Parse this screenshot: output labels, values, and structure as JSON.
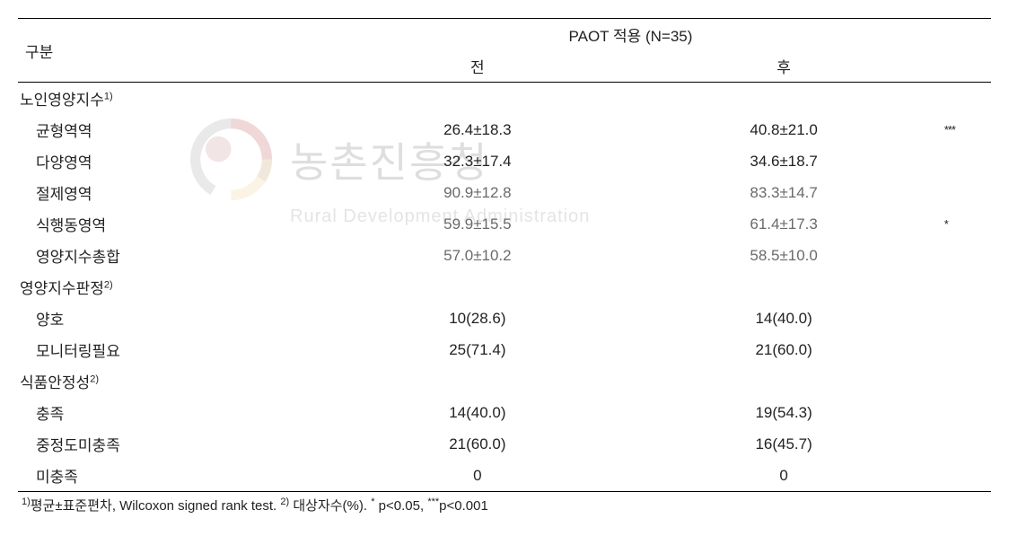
{
  "watermark": {
    "text_kr": "농촌진흥청",
    "text_en": "Rural Development Administration"
  },
  "header": {
    "category": "구분",
    "group": "PAOT 적용 (N=35)",
    "before": "전",
    "after": "후"
  },
  "sections": [
    {
      "label": "노인영양지수",
      "sup": "1)",
      "rows": [
        {
          "label": "균형역역",
          "before": "26.4±18.3",
          "after": "40.8±21.0",
          "sig": "***",
          "gray": false
        },
        {
          "label": "다양영역",
          "before": "32.3±17.4",
          "after": "34.6±18.7",
          "sig": "",
          "gray": false
        },
        {
          "label": "절제영역",
          "before": "90.9±12.8",
          "after": "83.3±14.7",
          "sig": "",
          "gray": true
        },
        {
          "label": "식행동영역",
          "before": "59.9±15.5",
          "after": "61.4±17.3",
          "sig": "*",
          "gray": true
        },
        {
          "label": "영양지수총합",
          "before": "57.0±10.2",
          "after": "58.5±10.0",
          "sig": "",
          "gray": true
        }
      ]
    },
    {
      "label": "영양지수판정",
      "sup": "2)",
      "rows": [
        {
          "label": "양호",
          "before": "10(28.6)",
          "after": "14(40.0)",
          "sig": "",
          "gray": false
        },
        {
          "label": "모니터링필요",
          "before": "25(71.4)",
          "after": "21(60.0)",
          "sig": "",
          "gray": false
        }
      ]
    },
    {
      "label": "식품안정성",
      "sup": "2)",
      "rows": [
        {
          "label": "충족",
          "before": "14(40.0)",
          "after": "19(54.3)",
          "sig": "",
          "gray": false
        },
        {
          "label": "중정도미충족",
          "before": "21(60.0)",
          "after": "16(45.7)",
          "sig": "",
          "gray": false
        },
        {
          "label": "미충족",
          "before": "0",
          "after": "0",
          "sig": "",
          "gray": false
        }
      ]
    }
  ],
  "footnote": {
    "part1_sup": "1)",
    "part1": "평균±표준편차, Wilcoxon signed rank test. ",
    "part2_sup": "2)",
    "part2": " 대상자수(%). ",
    "part3_sup": "*",
    "part3": " p<0.05, ",
    "part4_sup": "***",
    "part4": "p<0.001"
  },
  "style": {
    "font_size_body": 17,
    "font_size_footnote": 15,
    "color_text": "#222222",
    "color_gray": "#6a6a6a",
    "border_color": "#000000"
  }
}
